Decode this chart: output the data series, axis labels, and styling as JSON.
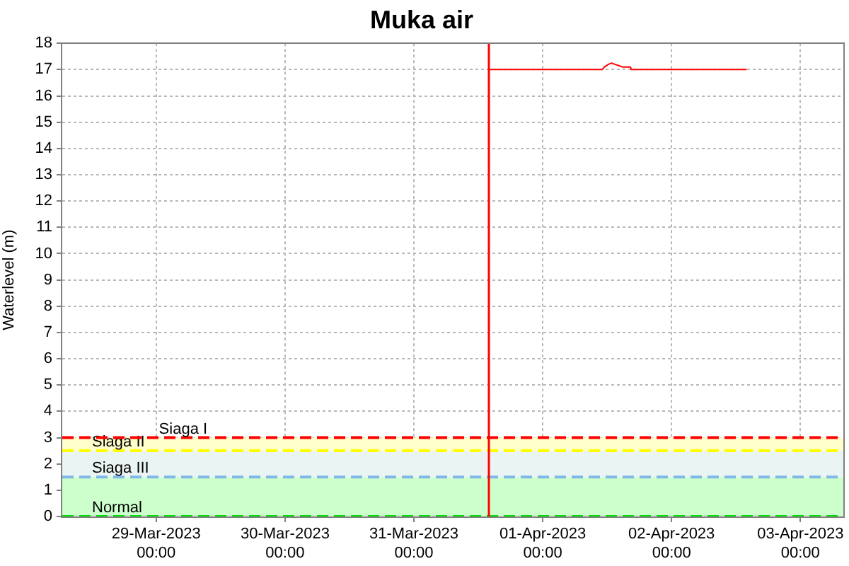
{
  "chart_data": {
    "type": "line",
    "title": "Muka air",
    "ylabel": "Waterlevel (m)",
    "x": [
      "2023-03-31T13:45",
      "2023-04-01T11:05",
      "2023-04-01T11:30",
      "2023-04-01T12:15",
      "2023-04-01T12:50",
      "2023-04-01T13:25",
      "2023-04-01T14:10",
      "2023-04-01T14:50",
      "2023-04-01T16:20",
      "2023-04-01T16:30",
      "2023-04-02T14:00"
    ],
    "series": [
      {
        "color": "#ff0000",
        "values": [
          17,
          17,
          17.1,
          17.2,
          17.25,
          17.2,
          17.15,
          17.1,
          17.1,
          17,
          17
        ]
      }
    ],
    "xlim": [
      "2023-03-28T06:30",
      "2023-04-03T08:00"
    ],
    "xticks": [
      {
        "value": "2023-03-29",
        "label": "29-Mar-2023\n00:00"
      },
      {
        "value": "2023-03-30",
        "label": "30-Mar-2023\n00:00"
      },
      {
        "value": "2023-03-31",
        "label": "31-Mar-2023\n00:00"
      },
      {
        "value": "2023-04-01",
        "label": "01-Apr-2023\n00:00"
      },
      {
        "value": "2023-04-02",
        "label": "02-Apr-2023\n00:00"
      },
      {
        "value": "2023-04-03",
        "label": "03-Apr-2023\n00:00"
      }
    ],
    "ylim": [
      0,
      18
    ],
    "yticks": [
      0,
      1,
      2,
      3,
      4,
      5,
      6,
      7,
      8,
      9,
      10,
      11,
      12,
      13,
      14,
      15,
      16,
      17,
      18
    ],
    "bands": [
      {
        "axis": "y",
        "from": 0,
        "to": 1.5,
        "color": "#ccffcc"
      },
      {
        "axis": "y",
        "from": 1.5,
        "to": 2.5,
        "color": "#eaf4f2"
      },
      {
        "axis": "y",
        "from": 2.5,
        "to": 3,
        "color": "#ffffcc"
      }
    ],
    "ref_lines": [
      {
        "axis": "y",
        "value": 0,
        "label": "Normal",
        "color": "#00dd00",
        "line_style": "dashed"
      },
      {
        "axis": "y",
        "value": 1.5,
        "label": "Siaga III",
        "color": "#80b8e8",
        "line_style": "dashed"
      },
      {
        "axis": "y",
        "value": 2.5,
        "label": "Siaga II",
        "color": "#ffff00",
        "line_style": "dashed"
      },
      {
        "axis": "y",
        "value": 3,
        "label": "Siaga I",
        "color": "#ff0000",
        "line_style": "dashed"
      },
      {
        "axis": "x",
        "value": "2023-03-31T13:45",
        "color": "#ff0000",
        "line_style": "solid"
      }
    ],
    "grid": true,
    "marker": "none",
    "line_style": "solid"
  }
}
